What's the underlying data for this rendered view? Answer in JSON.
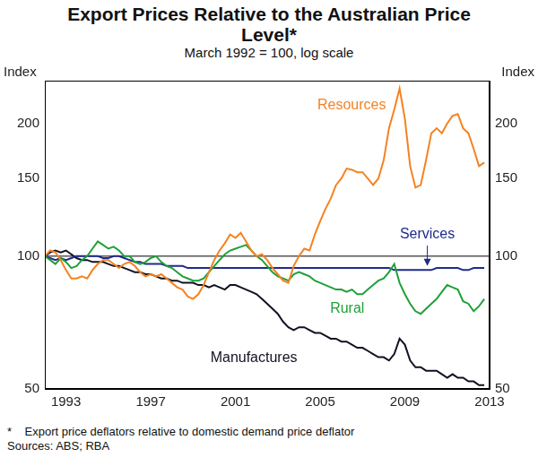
{
  "chart_data": {
    "type": "line",
    "title": "Export Prices Relative to the Australian Price Level*",
    "subtitle": "March 1992 = 100, log scale",
    "ylabel": "Index",
    "y2label": "Index",
    "footnote": "*    Export price deflators relative to domestic demand price deflator",
    "source": "Sources: ABS; RBA",
    "log": "y",
    "grid": false,
    "xlim": [
      1992,
      2013
    ],
    "xticks": [
      1993,
      1997,
      2001,
      2005,
      2009,
      2013
    ],
    "ylim": [
      50,
      250
    ],
    "yticks": [
      50,
      100,
      150,
      200
    ],
    "y2lim": [
      50,
      250
    ],
    "y2ticks": [
      50,
      100,
      150,
      200
    ],
    "x": [
      1992,
      1992.25,
      1992.5,
      1992.75,
      1993,
      1993.25,
      1993.5,
      1993.75,
      1994,
      1994.25,
      1994.5,
      1994.75,
      1995,
      1995.25,
      1995.5,
      1995.75,
      1996,
      1996.25,
      1996.5,
      1996.75,
      1997,
      1997.25,
      1997.5,
      1997.75,
      1998,
      1998.25,
      1998.5,
      1998.75,
      1999,
      1999.25,
      1999.5,
      1999.75,
      2000,
      2000.25,
      2000.5,
      2000.75,
      2001,
      2001.25,
      2001.5,
      2001.75,
      2002,
      2002.25,
      2002.5,
      2002.75,
      2003,
      2003.25,
      2003.5,
      2003.75,
      2004,
      2004.25,
      2004.5,
      2004.75,
      2005,
      2005.25,
      2005.5,
      2005.75,
      2006,
      2006.25,
      2006.5,
      2006.75,
      2007,
      2007.25,
      2007.5,
      2007.75,
      2008,
      2008.25,
      2008.5,
      2008.75,
      2009,
      2009.25,
      2009.5,
      2009.75,
      2010,
      2010.25,
      2010.5,
      2010.75,
      2011,
      2011.25,
      2011.5,
      2011.75,
      2012,
      2012.25,
      2012.5,
      2012.75
    ],
    "series": [
      {
        "name": "Resources",
        "color": "#f58220",
        "values": [
          100,
          103,
          102,
          98,
          93,
          89,
          89,
          90,
          89,
          93,
          96,
          98,
          98,
          96,
          94,
          96,
          97,
          95,
          92,
          90,
          91,
          90,
          91,
          89,
          87,
          85,
          84,
          81,
          80,
          82,
          86,
          92,
          98,
          103,
          107,
          112,
          110,
          113,
          108,
          103,
          100,
          101,
          98,
          94,
          91,
          88,
          87,
          95,
          100,
          104,
          103,
          112,
          120,
          128,
          135,
          145,
          150,
          158,
          157,
          155,
          155,
          150,
          145,
          150,
          165,
          195,
          215,
          240,
          205,
          160,
          143,
          145,
          165,
          190,
          195,
          190,
          200,
          208,
          210,
          195,
          190,
          175,
          160,
          163
        ]
      },
      {
        "name": "Rural",
        "color": "#1fa038",
        "values": [
          100,
          98,
          96,
          99,
          97,
          94,
          95,
          98,
          100,
          104,
          108,
          106,
          104,
          105,
          103,
          100,
          100,
          97,
          96,
          97,
          99,
          100,
          97,
          95,
          94,
          92,
          90,
          89,
          88,
          88,
          89,
          92,
          95,
          98,
          101,
          103,
          104,
          105,
          106,
          103,
          100,
          98,
          95,
          92,
          90,
          89,
          88,
          91,
          92,
          91,
          90,
          88,
          87,
          86,
          85,
          84,
          84,
          83,
          84,
          82,
          82,
          84,
          86,
          88,
          89,
          92,
          96,
          87,
          82,
          78,
          75,
          74,
          76,
          78,
          80,
          83,
          86,
          85,
          84,
          79,
          78,
          75,
          77,
          80
        ]
      },
      {
        "name": "Services",
        "color": "#1f2a8c",
        "values": [
          100,
          99,
          98,
          99,
          98,
          99,
          100,
          100,
          100,
          100,
          100,
          99,
          99,
          100,
          100,
          99,
          98,
          97,
          97,
          96,
          96,
          96,
          96,
          95,
          95,
          95,
          95,
          94,
          94,
          94,
          94,
          94,
          94,
          94,
          94,
          94,
          94,
          94,
          94,
          94,
          94,
          94,
          94,
          94,
          94,
          94,
          94,
          94,
          94,
          94,
          94,
          94,
          94,
          94,
          94,
          94,
          94,
          94,
          94,
          94,
          94,
          94,
          94,
          94,
          94,
          94,
          93,
          93,
          93,
          93,
          93,
          93,
          93,
          93,
          94,
          94,
          94,
          94,
          94,
          93,
          93,
          94,
          94,
          94
        ]
      },
      {
        "name": "Manufactures",
        "color": "#111122",
        "values": [
          100,
          102,
          103,
          102,
          103,
          101,
          99,
          98,
          98,
          97,
          97,
          97,
          96,
          95,
          95,
          94,
          93,
          92,
          92,
          91,
          91,
          90,
          89,
          89,
          88,
          88,
          87,
          87,
          87,
          86,
          86,
          85,
          86,
          85,
          84,
          86,
          86,
          85,
          84,
          83,
          82,
          80,
          78,
          76,
          74,
          71,
          69,
          68,
          69,
          69,
          68,
          67,
          67,
          66,
          65,
          65,
          64,
          64,
          63,
          62,
          62,
          61,
          60,
          59,
          59,
          58,
          60,
          65,
          63,
          58,
          56,
          56,
          55,
          55,
          55,
          54,
          53,
          54,
          53,
          53,
          52,
          52,
          51,
          51
        ]
      }
    ]
  }
}
